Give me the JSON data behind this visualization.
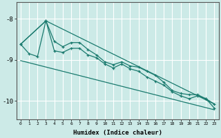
{
  "xlabel": "Humidex (Indice chaleur)",
  "ylabel": "",
  "bg_color": "#cceae7",
  "grid_color": "#ffffff",
  "line_color": "#1a7a6e",
  "xlim": [
    -0.5,
    23.5
  ],
  "ylim": [
    -10.45,
    -7.6
  ],
  "xticks": [
    0,
    1,
    2,
    3,
    4,
    5,
    6,
    7,
    8,
    9,
    10,
    11,
    12,
    13,
    14,
    15,
    16,
    17,
    18,
    19,
    20,
    21,
    22,
    23
  ],
  "yticks": [
    -10,
    -9,
    -8
  ],
  "series": {
    "line_upper_straight": {
      "x": [
        0,
        3,
        23
      ],
      "y": [
        -8.62,
        -8.05,
        -10.08
      ],
      "marker": false
    },
    "line_lower_straight": {
      "x": [
        0,
        23
      ],
      "y": [
        -9.02,
        -10.22
      ],
      "marker": false
    },
    "line_zigzag1": {
      "x": [
        0,
        1,
        2,
        3,
        4,
        5,
        6,
        7,
        8,
        9,
        10,
        11,
        12,
        13,
        14,
        15,
        16,
        17,
        18,
        19,
        20,
        21,
        22,
        23
      ],
      "y": [
        -8.62,
        -8.85,
        -8.92,
        -8.05,
        -8.78,
        -8.82,
        -8.72,
        -8.72,
        -8.88,
        -8.95,
        -9.1,
        -9.2,
        -9.1,
        -9.22,
        -9.28,
        -9.42,
        -9.52,
        -9.62,
        -9.78,
        -9.88,
        -9.95,
        -9.88,
        -9.95,
        -10.18
      ],
      "marker": true
    },
    "line_zigzag2": {
      "x": [
        0,
        3,
        4,
        5,
        6,
        7,
        8,
        9,
        10,
        11,
        12,
        13,
        14,
        15,
        16,
        17,
        18,
        19,
        20,
        21,
        22,
        23
      ],
      "y": [
        -8.62,
        -8.05,
        -8.55,
        -8.68,
        -8.58,
        -8.58,
        -8.75,
        -8.88,
        -9.05,
        -9.12,
        -9.05,
        -9.15,
        -9.18,
        -9.28,
        -9.38,
        -9.55,
        -9.75,
        -9.82,
        -9.85,
        -9.85,
        -9.95,
        -10.08
      ],
      "marker": true
    }
  }
}
